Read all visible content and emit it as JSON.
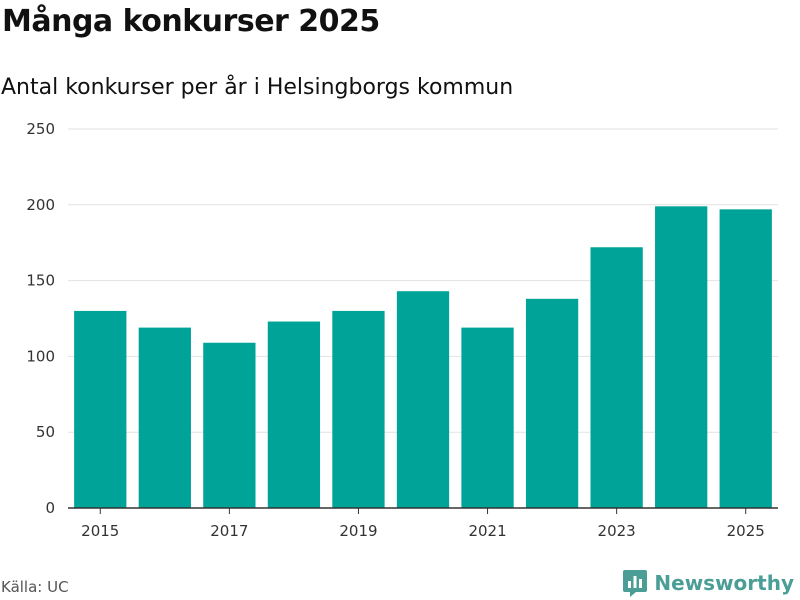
{
  "title": "Många konkurser 2025",
  "subtitle": "Antal konkurser per år i Helsingborgs kommun",
  "source": "Källa: UC",
  "brand": {
    "name": "Newsworthy",
    "color": "#4a9e96"
  },
  "colors": {
    "bar": "#00a398",
    "grid": "#e2e2e2",
    "axis": "#333333"
  },
  "chart_data": {
    "type": "bar",
    "title": "Många konkurser 2025",
    "subtitle": "Antal konkurser per år i Helsingborgs kommun",
    "xlabel": "",
    "ylabel": "",
    "categories": [
      "2015",
      "2016",
      "2017",
      "2018",
      "2019",
      "2020",
      "2021",
      "2022",
      "2023",
      "2024",
      "2025"
    ],
    "values": [
      130,
      119,
      109,
      123,
      130,
      143,
      119,
      138,
      172,
      199,
      197
    ],
    "xticks": [
      "2015",
      "2017",
      "2019",
      "2021",
      "2023",
      "2025"
    ],
    "yticks": [
      0,
      50,
      100,
      150,
      200,
      250
    ],
    "ylim": [
      0,
      250
    ],
    "grid": true,
    "legend": "none"
  }
}
